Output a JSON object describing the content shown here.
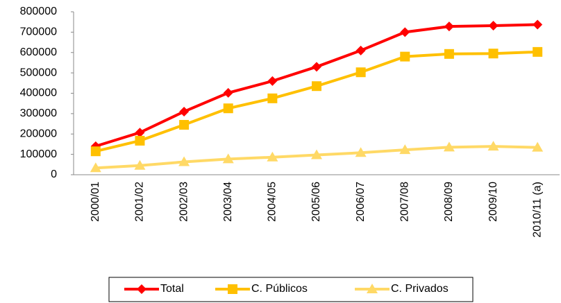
{
  "chart_data": {
    "type": "line",
    "categories": [
      "2000/01",
      "2001/02",
      "2002/03",
      "2003/04",
      "2004/05",
      "2005/06",
      "2006/07",
      "2007/08",
      "2008/09",
      "2009/10",
      "2010/11 (a)"
    ],
    "series": [
      {
        "name": "Total",
        "color": "#ff0000",
        "marker": "diamond",
        "values": [
          140000,
          207000,
          310000,
          402000,
          460000,
          530000,
          610000,
          700000,
          728000,
          732000,
          737000
        ]
      },
      {
        "name": "C. Públicos",
        "color": "#ffc000",
        "marker": "square",
        "values": [
          115000,
          167000,
          245000,
          326000,
          375000,
          435000,
          503000,
          580000,
          593000,
          595000,
          603000
        ]
      },
      {
        "name": "C. Privados",
        "color": "#ffd966",
        "marker": "triangle",
        "values": [
          33000,
          45000,
          63000,
          77000,
          86000,
          97000,
          108000,
          122000,
          135000,
          139000,
          134000
        ]
      }
    ],
    "ylim": [
      0,
      800000
    ],
    "yticks": [
      0,
      100000,
      200000,
      300000,
      400000,
      500000,
      600000,
      700000,
      800000
    ],
    "grid": false,
    "legend": "bottom"
  }
}
